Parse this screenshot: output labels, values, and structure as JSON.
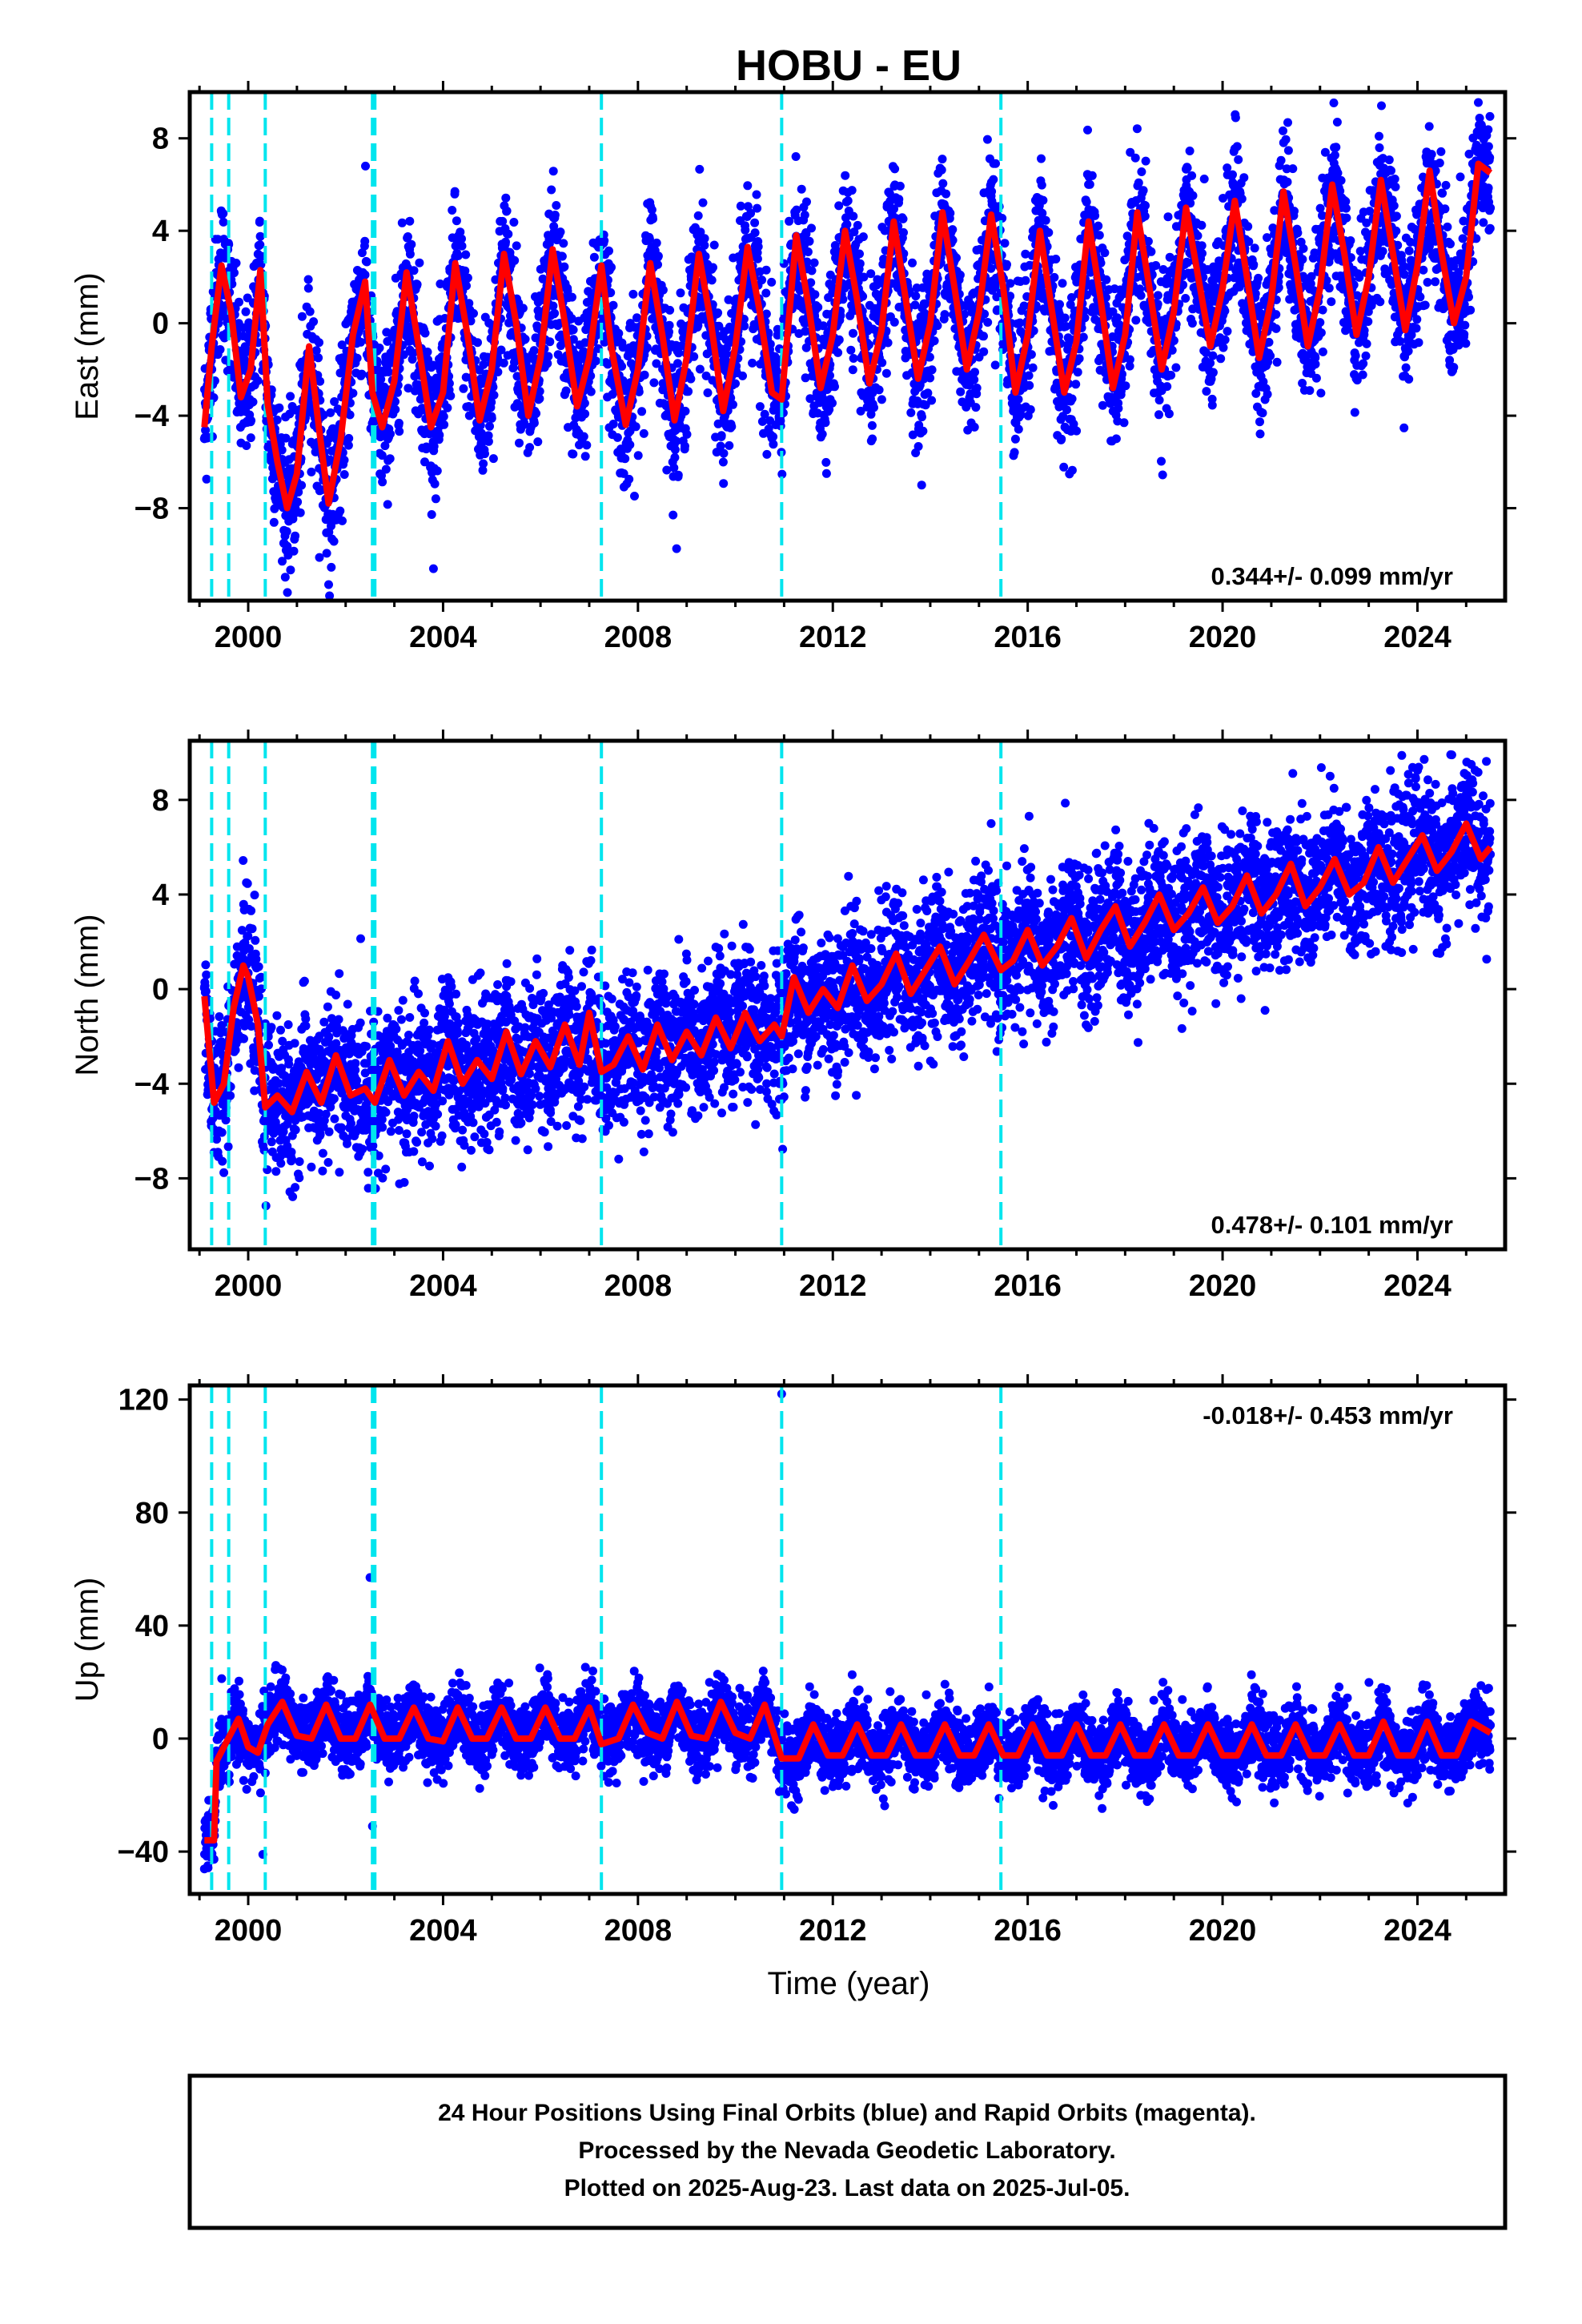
{
  "chart_data": {
    "type": "scatter",
    "title": "HOBU - EU",
    "xlabel": "Time (year)",
    "xlim": [
      1998.8,
      2025.8
    ],
    "xticks": [
      2000,
      2004,
      2008,
      2012,
      2016,
      2020,
      2024
    ],
    "xtick_labels": [
      "2000",
      "2004",
      "2008",
      "2012",
      "2016",
      "2020",
      "2024"
    ],
    "event_lines": [
      1999.25,
      1999.6,
      2000.35,
      2002.55,
      2002.6,
      2007.25,
      2010.95,
      2015.45
    ],
    "series_colors": {
      "points": "#0000ff",
      "model": "#ff0000",
      "event_lines": "#00e5ee"
    },
    "footer": {
      "lines": [
        "24 Hour Positions Using Final Orbits (blue) and Rapid Orbits (magenta).",
        "Processed by the Nevada Geodetic Laboratory.",
        "Plotted on 2025-Aug-23. Last data on 2025-Jul-05."
      ]
    },
    "panels": [
      {
        "component": "east",
        "ylabel": "East (mm)",
        "ylim": [
          -12,
          10
        ],
        "yticks": [
          8,
          4,
          0,
          -4,
          -8
        ],
        "ytick_labels": [
          "8",
          "4",
          "0",
          "−4",
          "−8"
        ],
        "rate": "0.344+/- 0.099 mm/yr",
        "rate_position": "bottom-right",
        "model_x": [
          1999.1,
          1999.25,
          1999.45,
          1999.65,
          1999.85,
          2000.05,
          2000.25,
          2000.4,
          2000.6,
          2000.8,
          2001.0,
          2001.25,
          2001.45,
          2001.65,
          2001.9,
          2002.15,
          2002.4,
          2002.55,
          2002.75,
          2003.0,
          2003.25,
          2003.5,
          2003.75,
          2004.0,
          2004.25,
          2004.5,
          2004.75,
          2005.0,
          2005.25,
          2005.5,
          2005.75,
          2006.0,
          2006.25,
          2006.5,
          2006.75,
          2007.0,
          2007.25,
          2007.45,
          2007.75,
          2008.0,
          2008.25,
          2008.5,
          2008.75,
          2009.0,
          2009.25,
          2009.5,
          2009.75,
          2010.0,
          2010.25,
          2010.5,
          2010.75,
          2010.95,
          2011.25,
          2011.5,
          2011.75,
          2012.0,
          2012.25,
          2012.5,
          2012.75,
          2013.0,
          2013.25,
          2013.5,
          2013.75,
          2014.0,
          2014.25,
          2014.5,
          2014.75,
          2015.0,
          2015.25,
          2015.5,
          2015.75,
          2016.0,
          2016.25,
          2016.5,
          2016.75,
          2017.0,
          2017.25,
          2017.5,
          2017.75,
          2018.0,
          2018.25,
          2018.5,
          2018.75,
          2019.0,
          2019.25,
          2019.5,
          2019.75,
          2020.0,
          2020.25,
          2020.5,
          2020.75,
          2021.0,
          2021.25,
          2021.5,
          2021.75,
          2022.0,
          2022.25,
          2022.5,
          2022.75,
          2023.0,
          2023.25,
          2023.5,
          2023.75,
          2024.0,
          2024.25,
          2024.5,
          2024.75,
          2025.0,
          2025.25,
          2025.5
        ],
        "model_y": [
          -4.5,
          -1.0,
          2.5,
          0.5,
          -3.2,
          -2.0,
          2.3,
          -3.5,
          -6.0,
          -8.0,
          -6.5,
          -1.0,
          -4.5,
          -7.8,
          -5.0,
          -0.5,
          1.8,
          -3.0,
          -4.5,
          -2.5,
          2.2,
          -1.0,
          -4.5,
          -3.0,
          2.6,
          -0.5,
          -4.2,
          -2.0,
          3.0,
          0.0,
          -4.0,
          -1.5,
          3.2,
          0.0,
          -3.6,
          -1.5,
          2.5,
          -1.0,
          -4.4,
          -2.0,
          2.6,
          -0.5,
          -4.2,
          -1.5,
          3.0,
          0.0,
          -3.8,
          -1.0,
          3.3,
          0.5,
          -3.0,
          -3.3,
          3.8,
          0.8,
          -2.8,
          -0.5,
          4.0,
          1.0,
          -2.6,
          -0.3,
          4.4,
          1.0,
          -2.4,
          0.0,
          4.8,
          1.5,
          -2.0,
          0.5,
          4.7,
          1.5,
          -3.0,
          -0.5,
          4.0,
          0.5,
          -3.0,
          -0.8,
          4.4,
          1.0,
          -2.8,
          -0.5,
          4.8,
          1.5,
          -2.0,
          0.5,
          5.0,
          2.0,
          -1.0,
          1.5,
          5.3,
          2.0,
          -1.5,
          1.0,
          5.7,
          2.5,
          -1.0,
          1.5,
          6.0,
          3.0,
          -0.5,
          2.0,
          6.2,
          3.0,
          -0.3,
          2.5,
          6.6,
          3.0,
          0.0,
          2.0,
          6.9,
          6.5
        ]
      },
      {
        "component": "north",
        "ylabel": "North (mm)",
        "ylim": [
          -11,
          10.5
        ],
        "yticks": [
          8,
          4,
          0,
          -4,
          -8
        ],
        "ytick_labels": [
          "8",
          "4",
          "0",
          "−4",
          "−8"
        ],
        "rate": "0.478+/- 0.101 mm/yr",
        "rate_position": "bottom-right",
        "model_x": [
          1999.1,
          1999.3,
          1999.5,
          1999.7,
          1999.9,
          2000.0,
          2000.2,
          2000.35,
          2000.6,
          2000.9,
          2001.2,
          2001.5,
          2001.8,
          2002.1,
          2002.4,
          2002.6,
          2002.9,
          2003.2,
          2003.5,
          2003.8,
          2004.1,
          2004.4,
          2004.7,
          2005.0,
          2005.3,
          2005.6,
          2005.9,
          2006.2,
          2006.5,
          2006.8,
          2007.0,
          2007.25,
          2007.5,
          2007.8,
          2008.1,
          2008.4,
          2008.7,
          2009.0,
          2009.3,
          2009.6,
          2009.9,
          2010.2,
          2010.5,
          2010.8,
          2010.95,
          2011.2,
          2011.5,
          2011.8,
          2012.1,
          2012.4,
          2012.7,
          2013.0,
          2013.3,
          2013.6,
          2013.9,
          2014.2,
          2014.5,
          2014.8,
          2015.1,
          2015.45,
          2015.7,
          2016.0,
          2016.3,
          2016.6,
          2016.9,
          2017.2,
          2017.5,
          2017.8,
          2018.1,
          2018.4,
          2018.7,
          2019.0,
          2019.3,
          2019.6,
          2019.9,
          2020.2,
          2020.5,
          2020.8,
          2021.1,
          2021.4,
          2021.7,
          2022.0,
          2022.3,
          2022.6,
          2022.9,
          2023.2,
          2023.5,
          2023.8,
          2024.1,
          2024.4,
          2024.7,
          2025.0,
          2025.3,
          2025.5
        ],
        "model_y": [
          -0.3,
          -4.8,
          -4.0,
          -0.8,
          1.0,
          0.5,
          -1.5,
          -5.0,
          -4.5,
          -5.2,
          -3.5,
          -4.8,
          -2.8,
          -4.5,
          -4.2,
          -4.8,
          -3.0,
          -4.5,
          -3.5,
          -4.3,
          -2.2,
          -4.0,
          -3.0,
          -3.8,
          -1.8,
          -3.6,
          -2.2,
          -3.3,
          -1.5,
          -3.2,
          -1.0,
          -3.5,
          -3.2,
          -2.0,
          -3.4,
          -1.5,
          -3.0,
          -1.8,
          -2.8,
          -1.2,
          -2.5,
          -1.0,
          -2.2,
          -1.5,
          -2.0,
          0.5,
          -1.0,
          0.0,
          -0.8,
          1.0,
          -0.5,
          0.2,
          1.5,
          -0.2,
          0.8,
          1.8,
          0.2,
          1.2,
          2.3,
          0.8,
          1.2,
          2.5,
          1.0,
          1.8,
          3.0,
          1.3,
          2.5,
          3.5,
          1.8,
          2.8,
          4.0,
          2.5,
          3.2,
          4.3,
          2.8,
          3.5,
          4.8,
          3.2,
          4.0,
          5.3,
          3.5,
          4.3,
          5.5,
          4.0,
          4.5,
          6.0,
          4.5,
          5.5,
          6.5,
          5.0,
          5.8,
          7.0,
          5.5,
          6.0
        ]
      },
      {
        "component": "up",
        "ylabel": "Up (mm)",
        "ylim": [
          -55,
          125
        ],
        "yticks": [
          120,
          80,
          40,
          0,
          -40
        ],
        "ytick_labels": [
          "120",
          "80",
          "40",
          "0",
          "−40"
        ],
        "rate": "-0.018+/- 0.453 mm/yr",
        "rate_position": "top-right",
        "outliers_x": [
          2002.5,
          2002.55,
          2000.3,
          2010.95
        ],
        "outliers_y": [
          57,
          -31,
          -41,
          122
        ],
        "model_x": [
          1999.1,
          1999.3,
          1999.35,
          1999.5,
          1999.8,
          2000.0,
          2000.2,
          2000.4,
          2000.7,
          2001.0,
          2001.3,
          2001.6,
          2001.9,
          2002.2,
          2002.5,
          2002.8,
          2003.1,
          2003.4,
          2003.7,
          2004.0,
          2004.3,
          2004.6,
          2004.9,
          2005.2,
          2005.5,
          2005.8,
          2006.1,
          2006.4,
          2006.7,
          2007.0,
          2007.25,
          2007.6,
          2007.9,
          2008.2,
          2008.5,
          2008.8,
          2009.1,
          2009.4,
          2009.7,
          2010.0,
          2010.3,
          2010.6,
          2010.95,
          2011.3,
          2011.6,
          2011.9,
          2012.2,
          2012.5,
          2012.8,
          2013.1,
          2013.4,
          2013.7,
          2014.0,
          2014.3,
          2014.6,
          2014.9,
          2015.2,
          2015.5,
          2015.8,
          2016.1,
          2016.4,
          2016.7,
          2017.0,
          2017.3,
          2017.6,
          2017.9,
          2018.2,
          2018.5,
          2018.8,
          2019.1,
          2019.4,
          2019.7,
          2020.0,
          2020.3,
          2020.6,
          2020.9,
          2021.2,
          2021.5,
          2021.8,
          2022.1,
          2022.4,
          2022.7,
          2023.0,
          2023.3,
          2023.6,
          2023.9,
          2024.2,
          2024.5,
          2024.8,
          2025.1,
          2025.5
        ],
        "model_y": [
          -36,
          -36,
          -8,
          -3,
          7,
          -3,
          -5,
          5,
          13,
          1,
          0,
          12,
          0,
          0,
          12,
          0,
          0,
          11,
          0,
          -1,
          11,
          0,
          0,
          11,
          0,
          0,
          11,
          0,
          0,
          11,
          -2,
          0,
          12,
          2,
          0,
          13,
          1,
          0,
          13,
          2,
          0,
          12,
          -7,
          -7,
          5,
          -6,
          -6,
          5,
          -6,
          -6,
          5,
          -6,
          -6,
          5,
          -6,
          -6,
          5,
          -6,
          -6,
          5,
          -6,
          -6,
          5,
          -6,
          -6,
          5,
          -6,
          -6,
          5,
          -6,
          -6,
          5,
          -6,
          -6,
          5,
          -6,
          -6,
          5,
          -6,
          -6,
          5,
          -6,
          -6,
          6,
          -6,
          -6,
          6,
          -6,
          -6,
          6,
          2
        ]
      }
    ]
  }
}
